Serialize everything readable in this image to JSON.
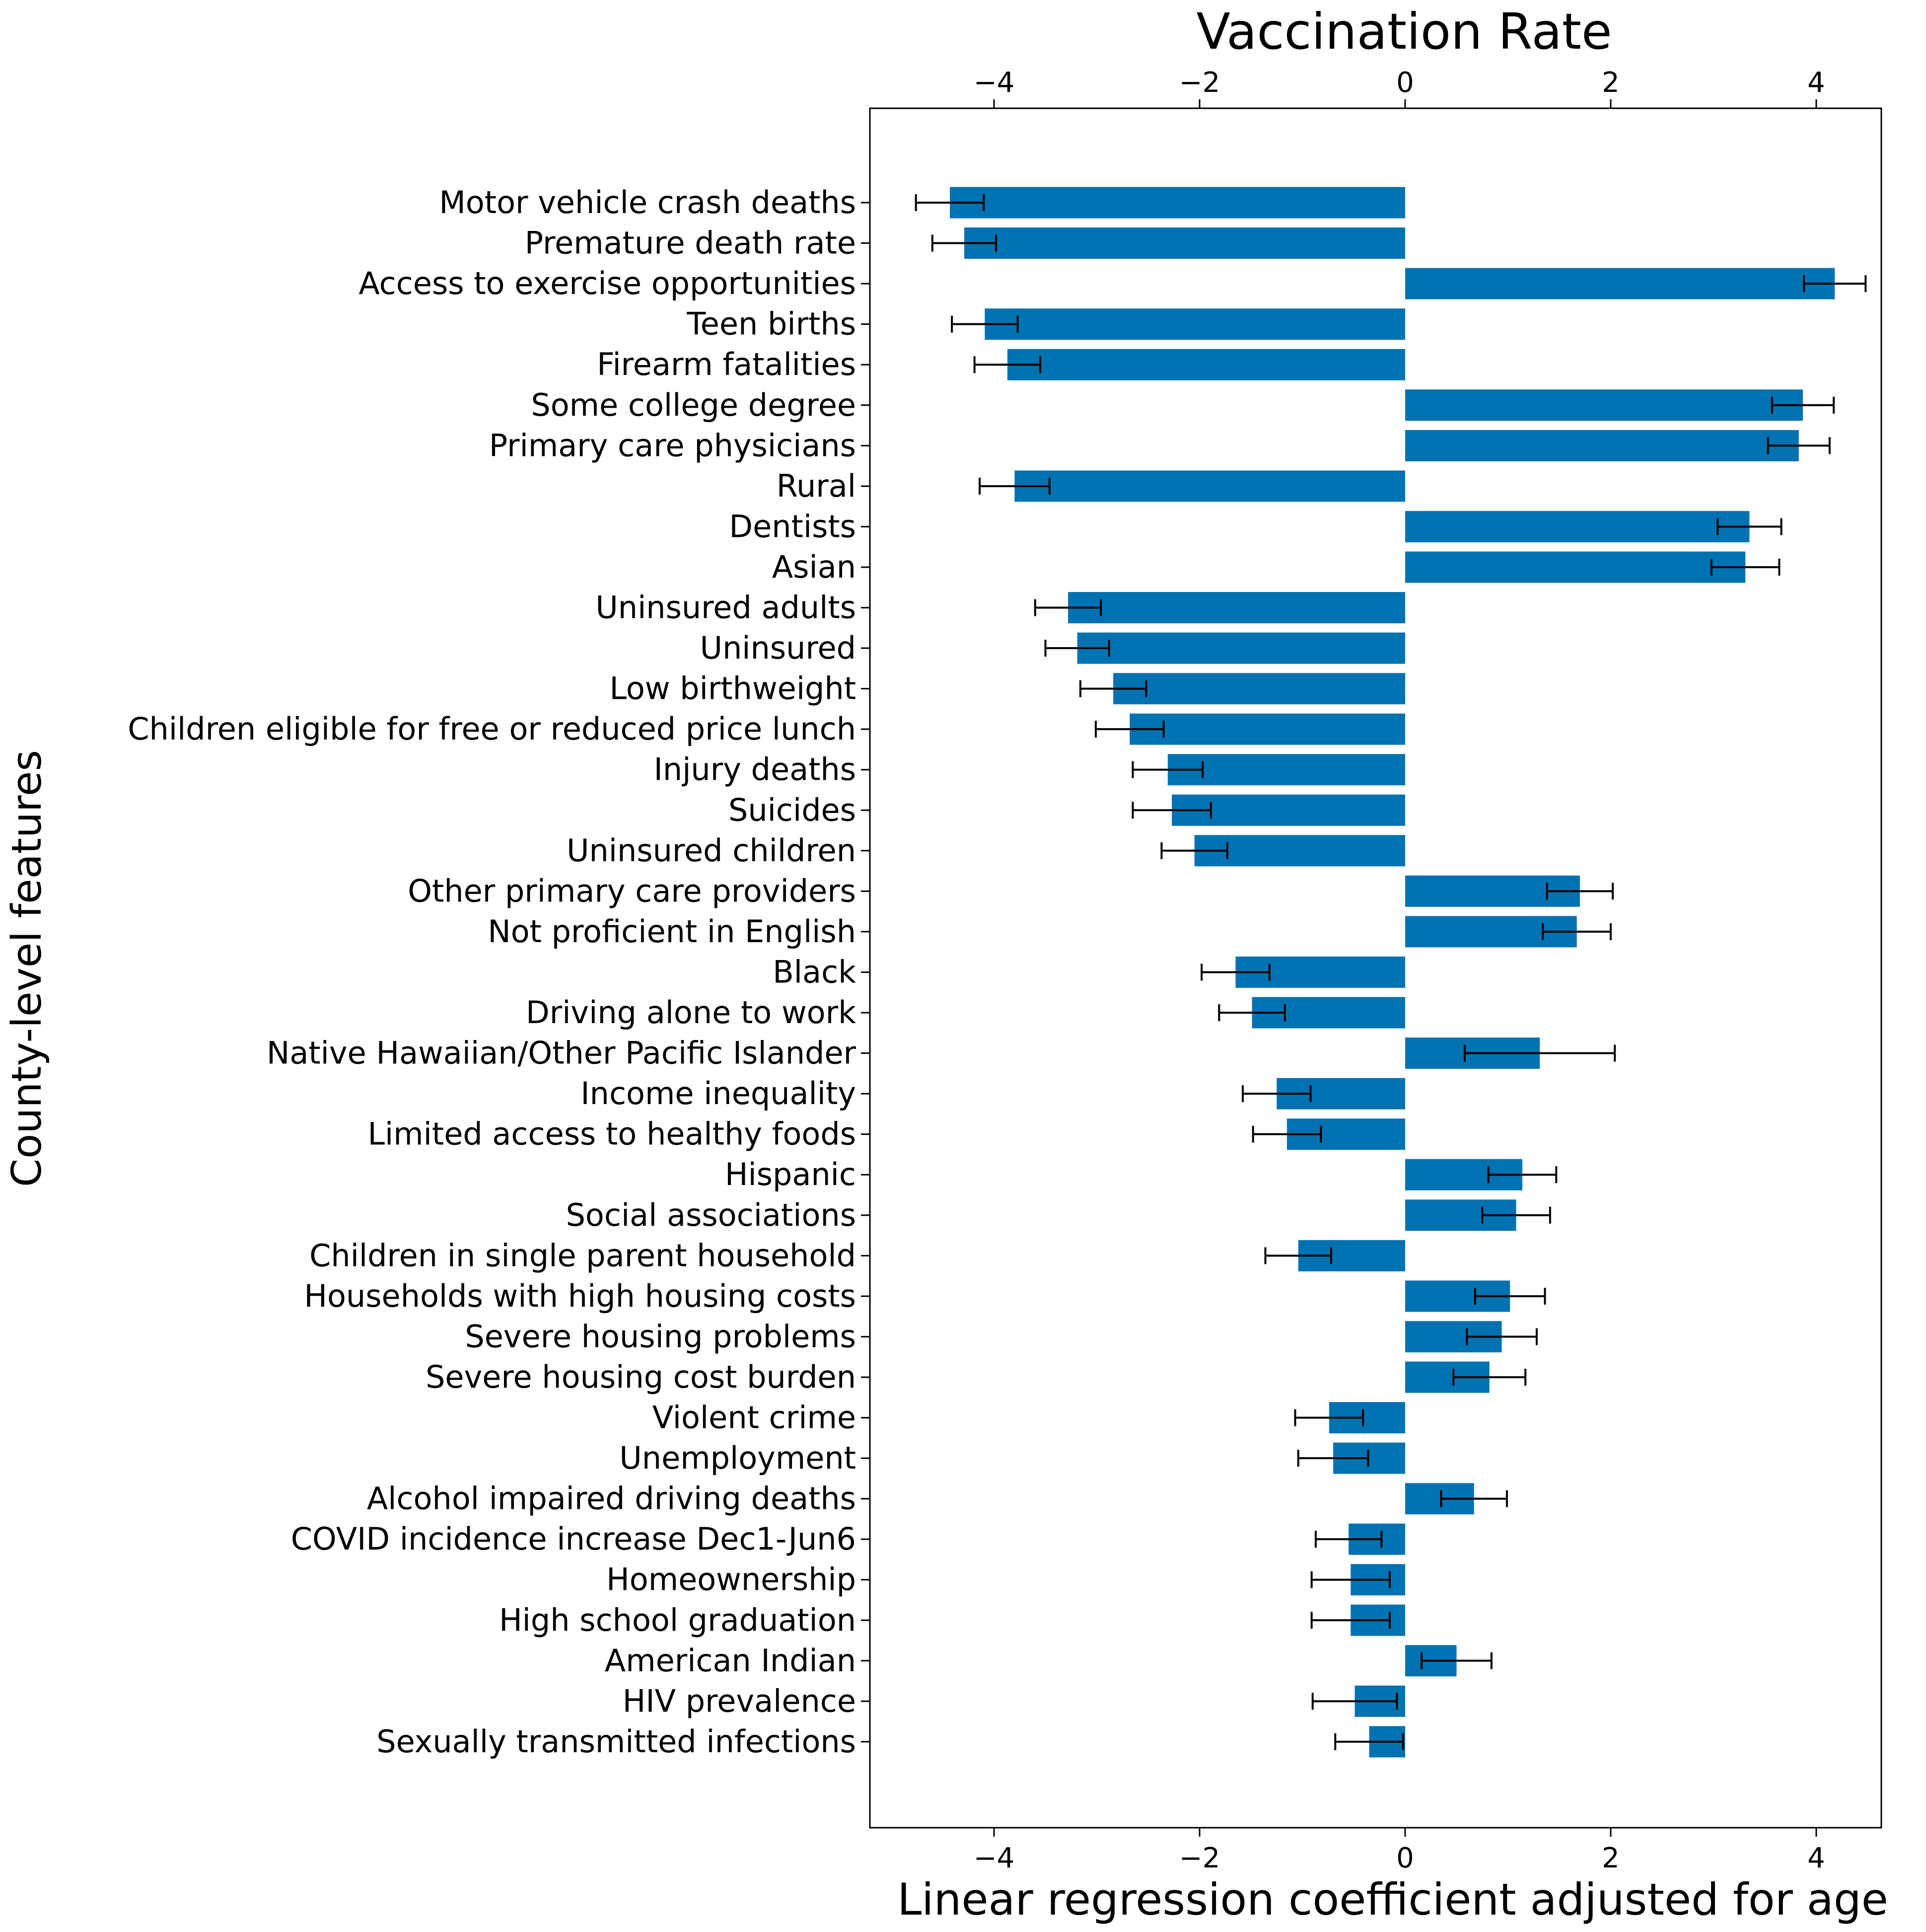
{
  "chart_data": {
    "type": "bar",
    "orientation": "horizontal",
    "title": "Vaccination Rate",
    "xlabel": "Linear regression coefficient adjusted for age",
    "ylabel": "County-level features",
    "xlim": [
      -5.2,
      4.9
    ],
    "xticks": [
      -4,
      -2,
      0,
      2,
      4
    ],
    "xtick_labels": [
      "−4",
      "−2",
      "0",
      "2",
      "4"
    ],
    "bar_color": "#0072b2",
    "error_color": "#000000",
    "grid": false,
    "categories": [
      "Motor vehicle crash deaths",
      "Premature death rate",
      "Access to exercise opportunities",
      "Teen births",
      "Firearm fatalities",
      "Some college degree",
      "Primary care physicians",
      "Rural",
      "Dentists",
      "Asian",
      "Uninsured adults",
      "Uninsured",
      "Low birthweight",
      "Children eligible for free or reduced price lunch",
      "Injury deaths",
      "Suicides",
      "Uninsured children",
      "Other primary care providers",
      "Not proficient in English",
      "Black",
      "Driving alone to work",
      "Native Hawaiian/Other Pacific Islander",
      "Income inequality",
      "Limited access to healthy foods",
      "Hispanic",
      "Social associations",
      "Children in single parent household",
      "Households with high housing costs",
      "Severe housing problems",
      "Severe housing cost burden",
      "Violent crime",
      "Unemployment",
      "Alcohol impaired driving deaths",
      "COVID incidence increase Dec1-Jun6",
      "Homeownership",
      "High school graduation",
      "American Indian",
      "HIV prevalence",
      "Sexually transmitted infections"
    ],
    "values": [
      -4.43,
      -4.29,
      4.18,
      -4.09,
      -3.87,
      3.87,
      3.83,
      -3.8,
      3.35,
      3.31,
      -3.28,
      -3.19,
      -2.84,
      -2.68,
      -2.31,
      -2.27,
      -2.05,
      1.7,
      1.67,
      -1.65,
      -1.49,
      1.31,
      -1.25,
      -1.15,
      1.14,
      1.08,
      -1.04,
      1.02,
      0.94,
      0.82,
      -0.74,
      -0.7,
      0.67,
      -0.55,
      -0.53,
      -0.53,
      0.5,
      -0.49,
      -0.35
    ],
    "errors": [
      0.33,
      0.31,
      0.3,
      0.32,
      0.32,
      0.3,
      0.3,
      0.34,
      0.31,
      0.33,
      0.32,
      0.31,
      0.32,
      0.33,
      0.34,
      0.38,
      0.32,
      0.32,
      0.33,
      0.33,
      0.32,
      0.73,
      0.33,
      0.33,
      0.33,
      0.33,
      0.32,
      0.34,
      0.34,
      0.35,
      0.33,
      0.34,
      0.32,
      0.32,
      0.38,
      0.38,
      0.34,
      0.41,
      0.33
    ]
  }
}
